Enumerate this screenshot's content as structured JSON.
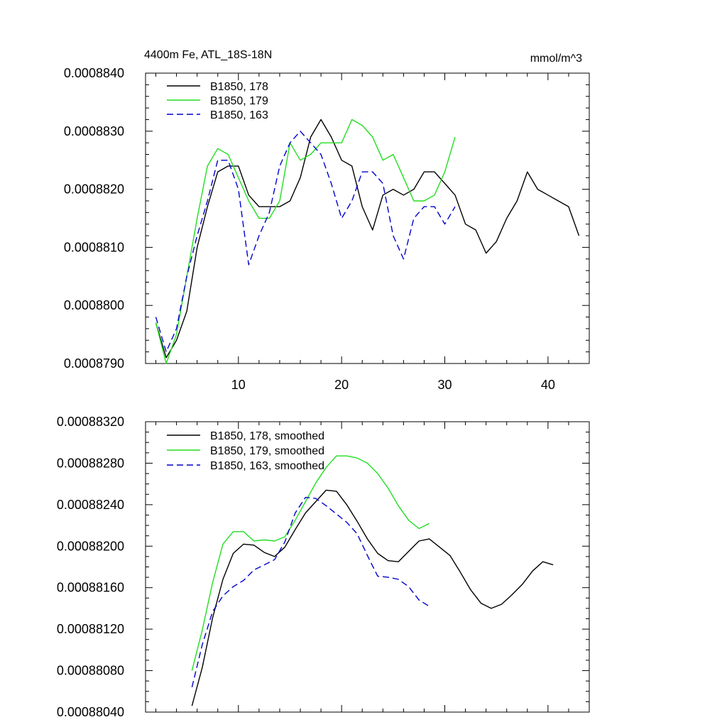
{
  "chart_data": [
    {
      "type": "line",
      "title": "4400m Fe, ATL_18S-18N",
      "units_label": "mmol/m^3",
      "xlim": [
        1,
        44
      ],
      "ylim": [
        0.000879,
        0.000884
      ],
      "x_major_ticks": [
        10,
        20,
        30,
        40
      ],
      "x_tick_labels": [
        "10",
        "20",
        "30",
        "40"
      ],
      "y_major_ticks": [
        0.000879,
        0.00088,
        0.000881,
        0.000882,
        0.000883,
        0.000884
      ],
      "y_tick_labels": [
        "0.0008790",
        "0.0008800",
        "0.0008810",
        "0.0008820",
        "0.0008830",
        "0.0008840"
      ],
      "legend_position": "top-left",
      "series": [
        {
          "name": "B1850, 178",
          "color": "#000000",
          "dash": "solid",
          "x": [
            2,
            3,
            4,
            5,
            6,
            7,
            8,
            9,
            10,
            11,
            12,
            13,
            14,
            15,
            16,
            17,
            18,
            19,
            20,
            21,
            22,
            23,
            24,
            25,
            26,
            27,
            28,
            29,
            30,
            31,
            32,
            33,
            34,
            35,
            36,
            37,
            38,
            39,
            40,
            41,
            42,
            43
          ],
          "values": [
            0.0008797,
            0.0008791,
            0.0008794,
            0.0008799,
            0.000881,
            0.0008817,
            0.0008823,
            0.0008824,
            0.0008824,
            0.0008819,
            0.0008817,
            0.0008817,
            0.0008817,
            0.0008818,
            0.0008822,
            0.0008829,
            0.0008832,
            0.0008829,
            0.0008825,
            0.0008824,
            0.0008817,
            0.0008813,
            0.0008819,
            0.000882,
            0.0008819,
            0.000882,
            0.0008823,
            0.0008823,
            0.0008821,
            0.0008819,
            0.0008814,
            0.0008813,
            0.0008809,
            0.0008811,
            0.0008815,
            0.0008818,
            0.0008823,
            0.000882,
            0.0008819,
            0.0008818,
            0.0008817,
            0.0008812
          ]
        },
        {
          "name": "B1850, 179",
          "color": "#22dd22",
          "dash": "solid",
          "x": [
            2,
            3,
            4,
            5,
            6,
            7,
            8,
            9,
            10,
            11,
            12,
            13,
            14,
            15,
            16,
            17,
            18,
            19,
            20,
            21,
            22,
            23,
            24,
            25,
            26,
            27,
            28,
            29,
            30,
            31
          ],
          "values": [
            0.0008797,
            0.000879,
            0.0008795,
            0.0008805,
            0.0008815,
            0.0008824,
            0.0008827,
            0.0008826,
            0.0008822,
            0.0008818,
            0.0008815,
            0.0008815,
            0.0008818,
            0.0008828,
            0.0008825,
            0.0008826,
            0.0008828,
            0.0008828,
            0.0008828,
            0.0008832,
            0.0008831,
            0.0008829,
            0.0008825,
            0.0008826,
            0.0008822,
            0.0008818,
            0.0008818,
            0.0008819,
            0.0008823,
            0.0008829
          ]
        },
        {
          "name": "B1850, 163",
          "color": "#0000cc",
          "dash": "dashed",
          "x": [
            2,
            3,
            4,
            5,
            6,
            7,
            8,
            9,
            10,
            11,
            12,
            13,
            14,
            15,
            16,
            17,
            18,
            19,
            20,
            21,
            22,
            23,
            24,
            25,
            26,
            27,
            28,
            29,
            30,
            31
          ],
          "values": [
            0.0008798,
            0.0008792,
            0.0008796,
            0.0008805,
            0.0008812,
            0.0008818,
            0.0008825,
            0.0008825,
            0.000882,
            0.0008807,
            0.0008812,
            0.0008816,
            0.0008824,
            0.0008828,
            0.000883,
            0.0008828,
            0.0008826,
            0.0008821,
            0.0008815,
            0.0008818,
            0.0008823,
            0.0008823,
            0.0008821,
            0.0008812,
            0.0008808,
            0.0008815,
            0.0008817,
            0.0008817,
            0.0008814,
            0.0008817
          ]
        }
      ]
    },
    {
      "type": "line",
      "title": "",
      "xlim": [
        1,
        44
      ],
      "ylim": [
        0.0008804,
        0.0008832
      ],
      "x_major_ticks": [
        10,
        20,
        30,
        40
      ],
      "y_major_ticks": [
        0.0008804,
        0.0008808,
        0.0008812,
        0.0008816,
        0.000882,
        0.0008824,
        0.0008828,
        0.0008832
      ],
      "y_tick_labels": [
        "0.00088040",
        "0.00088080",
        "0.00088120",
        "0.00088160",
        "0.00088200",
        "0.00088240",
        "0.00088280",
        "0.00088320"
      ],
      "legend_position": "top-left",
      "series": [
        {
          "name": "B1850, 178, smoothed",
          "color": "#000000",
          "dash": "solid",
          "x": [
            5.5,
            6.5,
            7.5,
            8.5,
            9.5,
            10.5,
            11.5,
            12.5,
            13.5,
            14.5,
            15.5,
            16.5,
            17.5,
            18.5,
            19.5,
            20.5,
            21.5,
            22.5,
            23.5,
            24.5,
            25.5,
            26.5,
            27.5,
            28.5,
            29.5,
            30.5,
            31.5,
            32.5,
            33.5,
            34.5,
            35.5,
            36.5,
            37.5,
            38.5,
            39.5,
            40.5
          ],
          "values": [
            0.00088046,
            0.00088083,
            0.00088131,
            0.00088168,
            0.00088193,
            0.00088202,
            0.00088201,
            0.00088194,
            0.0008819,
            0.00088199,
            0.00088216,
            0.00088232,
            0.00088243,
            0.00088254,
            0.00088253,
            0.0008824,
            0.00088224,
            0.00088207,
            0.00088193,
            0.00088186,
            0.00088185,
            0.00088195,
            0.00088205,
            0.00088207,
            0.00088199,
            0.00088191,
            0.00088175,
            0.00088158,
            0.00088145,
            0.0008814,
            0.00088144,
            0.00088153,
            0.00088163,
            0.00088176,
            0.00088185,
            0.00088182
          ]
        },
        {
          "name": "B1850, 179, smoothed",
          "color": "#22dd22",
          "dash": "solid",
          "x": [
            5.5,
            6.5,
            7.5,
            8.5,
            9.5,
            10.5,
            11.5,
            12.5,
            13.5,
            14.5,
            15.5,
            16.5,
            17.5,
            18.5,
            19.5,
            20.5,
            21.5,
            22.5,
            23.5,
            24.5,
            25.5,
            26.5,
            27.5,
            28.5
          ],
          "values": [
            0.0008808,
            0.00088119,
            0.00088165,
            0.00088202,
            0.00088214,
            0.00088214,
            0.00088205,
            0.00088206,
            0.00088205,
            0.00088209,
            0.00088225,
            0.00088243,
            0.00088261,
            0.00088276,
            0.00088287,
            0.00088287,
            0.00088285,
            0.0008828,
            0.0008827,
            0.00088256,
            0.00088239,
            0.00088225,
            0.00088217,
            0.00088222
          ]
        },
        {
          "name": "B1850, 163, smoothed",
          "color": "#0000cc",
          "dash": "dashed",
          "x": [
            5.5,
            6.5,
            7.5,
            8.5,
            9.5,
            10.5,
            11.5,
            12.5,
            13.5,
            14.5,
            15.5,
            16.5,
            17.5,
            18.5,
            19.5,
            20.5,
            21.5,
            22.5,
            23.5,
            24.5,
            25.5,
            26.5,
            27.5,
            28.5
          ],
          "values": [
            0.00088064,
            0.00088105,
            0.00088137,
            0.00088152,
            0.00088161,
            0.00088167,
            0.00088177,
            0.00088182,
            0.00088187,
            0.00088204,
            0.00088232,
            0.00088247,
            0.00088246,
            0.00088239,
            0.00088231,
            0.00088223,
            0.00088212,
            0.00088191,
            0.00088171,
            0.0008817,
            0.00088168,
            0.00088161,
            0.00088148,
            0.00088142
          ]
        }
      ]
    }
  ]
}
